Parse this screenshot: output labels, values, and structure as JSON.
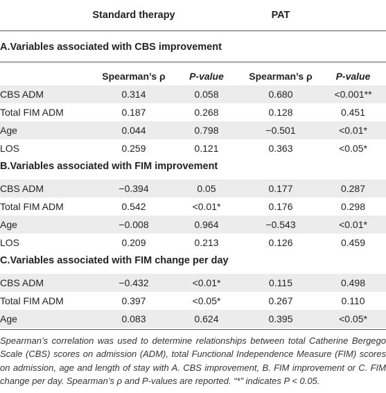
{
  "header": {
    "standard": "Standard therapy",
    "pat": "PAT"
  },
  "subheader": {
    "rho1": "Spearman’s ρ",
    "p1": "P-value",
    "rho2": "Spearman’s ρ",
    "p2": "P-value"
  },
  "sections": [
    {
      "title": "A.Variables associated with CBS improvement",
      "rows": [
        {
          "label": "CBS ADM",
          "std_rho": "0.314",
          "std_p": "0.058",
          "pat_rho": "0.680",
          "pat_p": "<0.001**"
        },
        {
          "label": "Total FIM ADM",
          "std_rho": "0.187",
          "std_p": "0.268",
          "pat_rho": "0.128",
          "pat_p": "0.451"
        },
        {
          "label": "Age",
          "std_rho": "0.044",
          "std_p": "0.798",
          "pat_rho": "−0.501",
          "pat_p": "<0.01*"
        },
        {
          "label": "LOS",
          "std_rho": "0.259",
          "std_p": "0.121",
          "pat_rho": "0.363",
          "pat_p": "<0.05*"
        }
      ]
    },
    {
      "title": "B.Variables associated with FIM improvement",
      "rows": [
        {
          "label": "CBS ADM",
          "std_rho": "−0.394",
          "std_p": "0.05",
          "pat_rho": "0.177",
          "pat_p": "0.287"
        },
        {
          "label": "Total FIM ADM",
          "std_rho": "0.542",
          "std_p": "<0.01*",
          "pat_rho": "0.176",
          "pat_p": "0.298"
        },
        {
          "label": "Age",
          "std_rho": "−0.008",
          "std_p": "0.964",
          "pat_rho": "−0.543",
          "pat_p": "<0.01*"
        },
        {
          "label": "LOS",
          "std_rho": "0.209",
          "std_p": "0.213",
          "pat_rho": "0.126",
          "pat_p": "0.459"
        }
      ]
    },
    {
      "title": "C.Variables associated with FIM change per day",
      "rows": [
        {
          "label": "CBS ADM",
          "std_rho": "−0.432",
          "std_p": "<0.01*",
          "pat_rho": "0.115",
          "pat_p": "0.498"
        },
        {
          "label": "Total FIM ADM",
          "std_rho": "0.397",
          "std_p": "<0.05*",
          "pat_rho": "0.267",
          "pat_p": "0.110"
        },
        {
          "label": "Age",
          "std_rho": "0.083",
          "std_p": "0.624",
          "pat_rho": "0.395",
          "pat_p": "<0.05*"
        }
      ]
    }
  ],
  "footnote": "Spearman’s correlation was used to determine relationships between total Catherine Bergego Scale (CBS) scores on admission (ADM), total Functional Independence Measure (FIM) scores on admission, age and length of stay with A. CBS improvement, B. FIM improvement or C. FIM change per day. Spearman’s ρ and P-values are reported. “*” indicates P < 0.05."
}
